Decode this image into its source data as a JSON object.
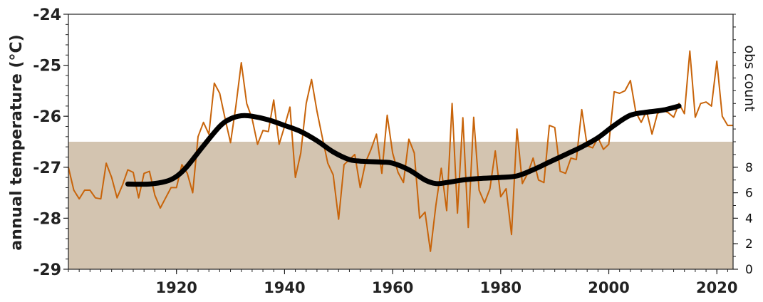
{
  "chart_data": {
    "type": "line",
    "title": "",
    "xlabel": "",
    "ylabel": "annual temperature (°C)",
    "y2label": "obs count",
    "xlim": [
      1900,
      2023
    ],
    "ylim": [
      -29,
      -24
    ],
    "y2lim": [
      0,
      20
    ],
    "x_ticks": [
      1920,
      1940,
      1960,
      1980,
      2000,
      2020
    ],
    "y_ticks": [
      -29,
      -28,
      -27,
      -26,
      -25,
      -24
    ],
    "y2_ticks": [
      0,
      2,
      4,
      6,
      8
    ],
    "grid": false,
    "legend": "none",
    "colors": {
      "annual": "#c8640a",
      "smooth": "#000000",
      "obs_fill": "#d3c4b0",
      "axis": "#222222"
    },
    "series": [
      {
        "name": "",
        "kind": "line",
        "x": [
          1900,
          1901,
          1902,
          1903,
          1904,
          1905,
          1906,
          1907,
          1908,
          1909,
          1910,
          1911,
          1912,
          1913,
          1914,
          1915,
          1916,
          1917,
          1918,
          1919,
          1920,
          1921,
          1922,
          1923,
          1924,
          1925,
          1926,
          1927,
          1928,
          1929,
          1930,
          1931,
          1932,
          1933,
          1934,
          1935,
          1936,
          1937,
          1938,
          1939,
          1940,
          1941,
          1942,
          1943,
          1944,
          1945,
          1946,
          1947,
          1948,
          1949,
          1950,
          1951,
          1952,
          1953,
          1954,
          1955,
          1956,
          1957,
          1958,
          1959,
          1960,
          1961,
          1962,
          1963,
          1964,
          1965,
          1966,
          1967,
          1968,
          1969,
          1970,
          1971,
          1972,
          1973,
          1974,
          1975,
          1976,
          1977,
          1978,
          1979,
          1980,
          1981,
          1982,
          1983,
          1984,
          1985,
          1986,
          1987,
          1988,
          1989,
          1990,
          1991,
          1992,
          1993,
          1994,
          1995,
          1996,
          1997,
          1998,
          1999,
          2000,
          2001,
          2002,
          2003,
          2004,
          2005,
          2006,
          2007,
          2008,
          2009,
          2010,
          2011,
          2012,
          2013,
          2014,
          2015,
          2016,
          2017,
          2018,
          2019,
          2020,
          2021,
          2022,
          2023
        ],
        "y": [
          -27.0,
          -27.45,
          -27.62,
          -27.45,
          -27.45,
          -27.6,
          -27.62,
          -26.92,
          -27.2,
          -27.6,
          -27.35,
          -27.05,
          -27.1,
          -27.6,
          -27.12,
          -27.08,
          -27.55,
          -27.8,
          -27.6,
          -27.4,
          -27.4,
          -26.95,
          -27.12,
          -27.5,
          -26.4,
          -26.12,
          -26.35,
          -25.35,
          -25.55,
          -26.05,
          -26.52,
          -25.8,
          -24.95,
          -25.75,
          -26.05,
          -26.55,
          -26.28,
          -26.3,
          -25.68,
          -26.55,
          -26.2,
          -25.82,
          -27.2,
          -26.72,
          -25.75,
          -25.28,
          -25.9,
          -26.42,
          -26.92,
          -27.15,
          -28.02,
          -26.95,
          -26.85,
          -26.75,
          -27.4,
          -26.9,
          -26.65,
          -26.35,
          -27.12,
          -25.98,
          -26.72,
          -27.1,
          -27.3,
          -26.45,
          -26.72,
          -28.0,
          -27.88,
          -28.65,
          -27.75,
          -27.02,
          -27.85,
          -25.75,
          -27.9,
          -26.03,
          -28.18,
          -26.02,
          -27.45,
          -27.7,
          -27.42,
          -26.68,
          -27.58,
          -27.42,
          -28.32,
          -26.25,
          -27.32,
          -27.12,
          -26.82,
          -27.25,
          -27.3,
          -26.18,
          -26.22,
          -27.08,
          -27.12,
          -26.82,
          -26.85,
          -25.87,
          -26.58,
          -26.62,
          -26.42,
          -26.65,
          -26.55,
          -25.52,
          -25.55,
          -25.5,
          -25.3,
          -25.92,
          -26.12,
          -25.9,
          -26.35,
          -25.95,
          -25.88,
          -25.93,
          -26.02,
          -25.75,
          -25.95,
          -24.72,
          -26.02,
          -25.75,
          -25.72,
          -25.8,
          -24.92,
          -26.0,
          -26.18,
          -26.18
        ]
      },
      {
        "name": "",
        "kind": "smoothed",
        "x": [
          1911,
          1915,
          1918,
          1920,
          1922,
          1925,
          1928,
          1930,
          1932,
          1934,
          1937,
          1940,
          1943,
          1946,
          1949,
          1952,
          1954,
          1958,
          1960,
          1963,
          1966,
          1968,
          1970,
          1973,
          1976,
          1980,
          1983,
          1986,
          1989,
          1992,
          1995,
          1998,
          2001,
          2004,
          2007,
          2010,
          2013
        ],
        "y": [
          -27.33,
          -27.33,
          -27.28,
          -27.18,
          -26.98,
          -26.58,
          -26.2,
          -26.05,
          -25.99,
          -26.0,
          -26.07,
          -26.18,
          -26.3,
          -26.48,
          -26.7,
          -26.85,
          -26.88,
          -26.9,
          -26.92,
          -27.05,
          -27.25,
          -27.32,
          -27.3,
          -27.25,
          -27.22,
          -27.2,
          -27.17,
          -27.05,
          -26.9,
          -26.75,
          -26.6,
          -26.42,
          -26.18,
          -25.98,
          -25.92,
          -25.88,
          -25.8
        ]
      },
      {
        "name": "",
        "kind": "area",
        "axis": "right",
        "x": [
          1900,
          2023
        ],
        "y": [
          10,
          10
        ]
      }
    ]
  }
}
